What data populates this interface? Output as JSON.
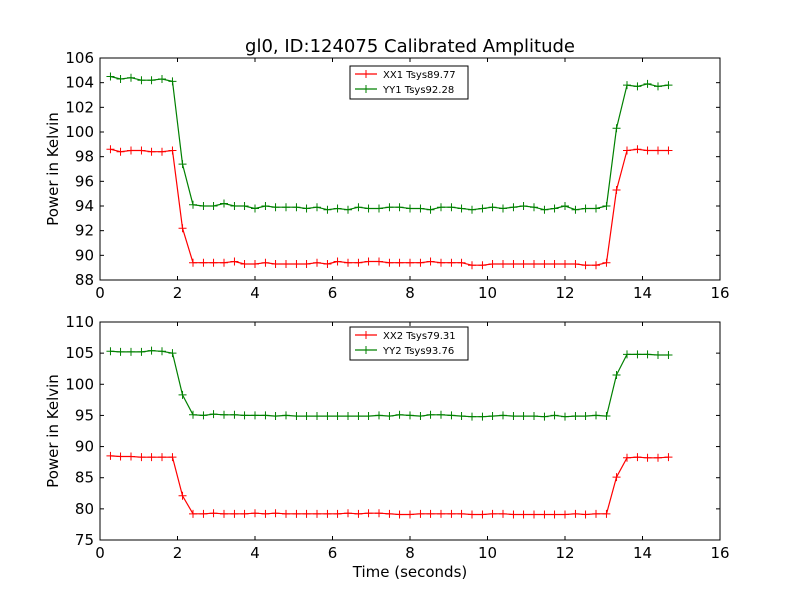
{
  "chart_data": [
    {
      "type": "line",
      "title": "gl0, ID:124075 Calibrated Amplitude",
      "xlabel": "",
      "ylabel": "Power in Kelvin",
      "xlim": [
        0,
        16
      ],
      "ylim": [
        88,
        106
      ],
      "xticks": [
        "0",
        "2",
        "4",
        "6",
        "8",
        "10",
        "12",
        "14",
        "16"
      ],
      "yticks": [
        "88",
        "90",
        "92",
        "94",
        "96",
        "98",
        "100",
        "102",
        "104",
        "106"
      ],
      "legend_position": "top-center",
      "grid": false,
      "x": [
        0.27,
        0.53,
        0.8,
        1.07,
        1.33,
        1.6,
        1.87,
        2.13,
        2.4,
        2.67,
        2.93,
        3.2,
        3.47,
        3.73,
        4.0,
        4.27,
        4.53,
        4.8,
        5.07,
        5.33,
        5.6,
        5.87,
        6.13,
        6.4,
        6.67,
        6.93,
        7.2,
        7.47,
        7.73,
        8.0,
        8.27,
        8.53,
        8.8,
        9.07,
        9.33,
        9.6,
        9.87,
        10.13,
        10.4,
        10.67,
        10.93,
        11.2,
        11.47,
        11.73,
        12.0,
        12.27,
        12.53,
        12.8,
        13.07,
        13.33,
        13.6,
        13.87,
        14.13,
        14.4,
        14.67
      ],
      "series": [
        {
          "name": "XX1 Tsys89.77",
          "color": "#ff0000",
          "values": [
            98.6,
            98.4,
            98.5,
            98.5,
            98.4,
            98.4,
            98.5,
            92.2,
            89.4,
            89.4,
            89.4,
            89.4,
            89.5,
            89.3,
            89.3,
            89.4,
            89.3,
            89.3,
            89.3,
            89.3,
            89.4,
            89.3,
            89.5,
            89.4,
            89.4,
            89.5,
            89.5,
            89.4,
            89.4,
            89.4,
            89.4,
            89.5,
            89.4,
            89.4,
            89.4,
            89.2,
            89.2,
            89.3,
            89.3,
            89.3,
            89.3,
            89.3,
            89.3,
            89.3,
            89.3,
            89.3,
            89.2,
            89.2,
            89.4,
            95.3,
            98.5,
            98.6,
            98.5,
            98.5,
            98.5
          ]
        },
        {
          "name": "YY1 Tsys92.28",
          "color": "#008000",
          "values": [
            104.5,
            104.3,
            104.4,
            104.2,
            104.2,
            104.3,
            104.1,
            97.4,
            94.1,
            94.0,
            94.0,
            94.2,
            94.0,
            94.0,
            93.8,
            94.0,
            93.9,
            93.9,
            93.9,
            93.8,
            93.9,
            93.7,
            93.8,
            93.7,
            93.9,
            93.8,
            93.8,
            93.9,
            93.9,
            93.8,
            93.8,
            93.7,
            93.9,
            93.9,
            93.8,
            93.7,
            93.8,
            93.9,
            93.8,
            93.9,
            94.0,
            93.9,
            93.7,
            93.8,
            94.0,
            93.7,
            93.8,
            93.8,
            94.0,
            100.3,
            103.8,
            103.7,
            103.9,
            103.7,
            103.8
          ]
        }
      ]
    },
    {
      "type": "line",
      "title": "",
      "xlabel": "Time (seconds)",
      "ylabel": "Power in Kelvin",
      "xlim": [
        0,
        16
      ],
      "ylim": [
        75,
        110
      ],
      "xticks": [
        "0",
        "2",
        "4",
        "6",
        "8",
        "10",
        "12",
        "14",
        "16"
      ],
      "yticks": [
        "75",
        "80",
        "85",
        "90",
        "95",
        "100",
        "105",
        "110"
      ],
      "legend_position": "top-center",
      "grid": false,
      "x": [
        0.27,
        0.53,
        0.8,
        1.07,
        1.33,
        1.6,
        1.87,
        2.13,
        2.4,
        2.67,
        2.93,
        3.2,
        3.47,
        3.73,
        4.0,
        4.27,
        4.53,
        4.8,
        5.07,
        5.33,
        5.6,
        5.87,
        6.13,
        6.4,
        6.67,
        6.93,
        7.2,
        7.47,
        7.73,
        8.0,
        8.27,
        8.53,
        8.8,
        9.07,
        9.33,
        9.6,
        9.87,
        10.13,
        10.4,
        10.67,
        10.93,
        11.2,
        11.47,
        11.73,
        12.0,
        12.27,
        12.53,
        12.8,
        13.07,
        13.33,
        13.6,
        13.87,
        14.13,
        14.4,
        14.67
      ],
      "series": [
        {
          "name": "XX2 Tsys79.31",
          "color": "#ff0000",
          "values": [
            88.5,
            88.4,
            88.4,
            88.3,
            88.3,
            88.3,
            88.3,
            82.1,
            79.2,
            79.2,
            79.3,
            79.2,
            79.2,
            79.2,
            79.3,
            79.2,
            79.3,
            79.2,
            79.2,
            79.2,
            79.2,
            79.2,
            79.2,
            79.3,
            79.2,
            79.3,
            79.3,
            79.2,
            79.1,
            79.1,
            79.2,
            79.2,
            79.2,
            79.2,
            79.2,
            79.1,
            79.1,
            79.2,
            79.2,
            79.1,
            79.1,
            79.1,
            79.1,
            79.1,
            79.1,
            79.2,
            79.1,
            79.2,
            79.2,
            85.1,
            88.2,
            88.3,
            88.2,
            88.2,
            88.3
          ]
        },
        {
          "name": "YY2 Tsys93.76",
          "color": "#008000",
          "values": [
            105.3,
            105.2,
            105.2,
            105.2,
            105.4,
            105.3,
            105.0,
            98.3,
            95.1,
            95.0,
            95.2,
            95.1,
            95.1,
            95.0,
            95.0,
            95.0,
            94.9,
            95.0,
            94.9,
            94.9,
            94.9,
            94.9,
            94.9,
            94.9,
            94.9,
            94.9,
            95.0,
            94.9,
            95.1,
            95.0,
            94.9,
            95.1,
            95.1,
            95.0,
            94.9,
            94.8,
            94.8,
            94.9,
            95.0,
            94.9,
            94.9,
            94.9,
            94.8,
            95.0,
            94.8,
            94.9,
            94.9,
            95.0,
            94.9,
            101.5,
            104.8,
            104.8,
            104.8,
            104.7,
            104.7
          ]
        }
      ]
    }
  ]
}
